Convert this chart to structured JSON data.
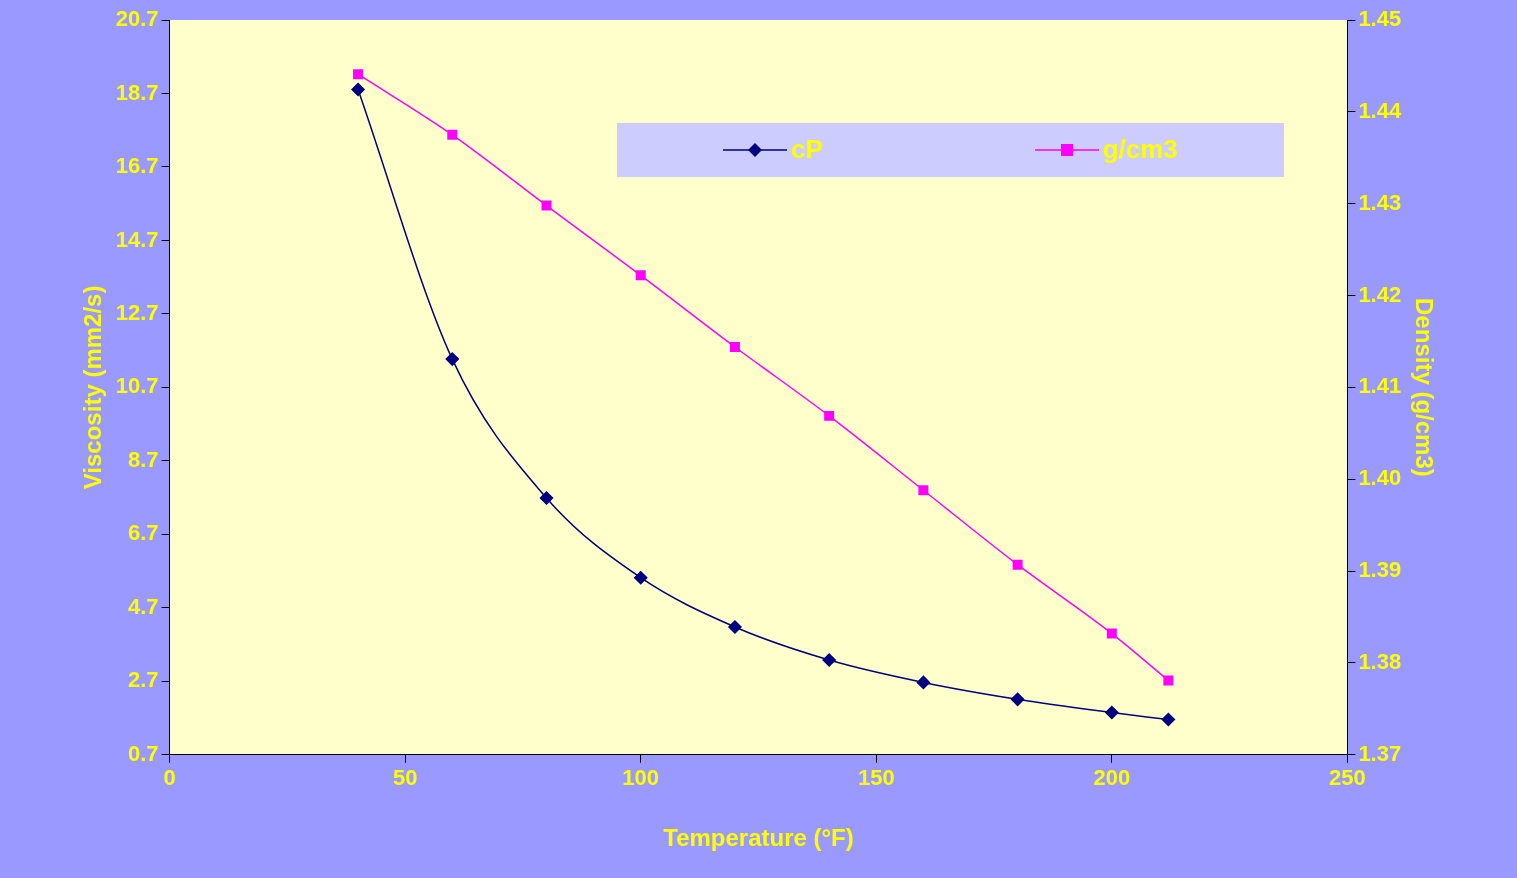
{
  "chart_data": {
    "type": "line",
    "xlabel": "Temperature (°F)",
    "ylabel": "Viscosity (mm2/s)",
    "y2label": "Density (g/cm3)",
    "xlim": [
      0,
      250
    ],
    "xticks": [
      0,
      50,
      100,
      150,
      200,
      250
    ],
    "ylim": [
      0.7,
      20.7
    ],
    "yticks": [
      0.7,
      2.7,
      4.7,
      6.7,
      8.7,
      10.7,
      12.7,
      14.7,
      16.7,
      18.7,
      20.7
    ],
    "y2lim": [
      1.37,
      1.45
    ],
    "y2ticks": [
      1.37,
      1.38,
      1.39,
      {
        "value": 1.4,
        "label": "1.40"
      },
      1.41,
      1.42,
      1.43,
      1.44,
      1.45
    ],
    "grid": false,
    "legend": "top right",
    "line_style": "solid",
    "series": [
      {
        "name": "cP",
        "color": "#000080",
        "marker": "diamond",
        "x": [
          40,
          60,
          80,
          100,
          120,
          140,
          160,
          180,
          200,
          212
        ],
        "values": [
          18.81,
          11.47,
          7.69,
          5.52,
          4.18,
          3.28,
          2.67,
          2.21,
          1.85,
          1.66
        ]
      },
      {
        "name": "g/cm3",
        "color": "#ff00ff",
        "marker": "square",
        "axis": "y2",
        "x": [
          40,
          60,
          80,
          100,
          120,
          140,
          160,
          180,
          200,
          212
        ],
        "values": [
          1.4441,
          1.4375,
          1.4298,
          1.4222,
          1.4144,
          1.4069,
          1.3988,
          1.3907,
          1.3832,
          1.3781
        ]
      }
    ]
  }
}
